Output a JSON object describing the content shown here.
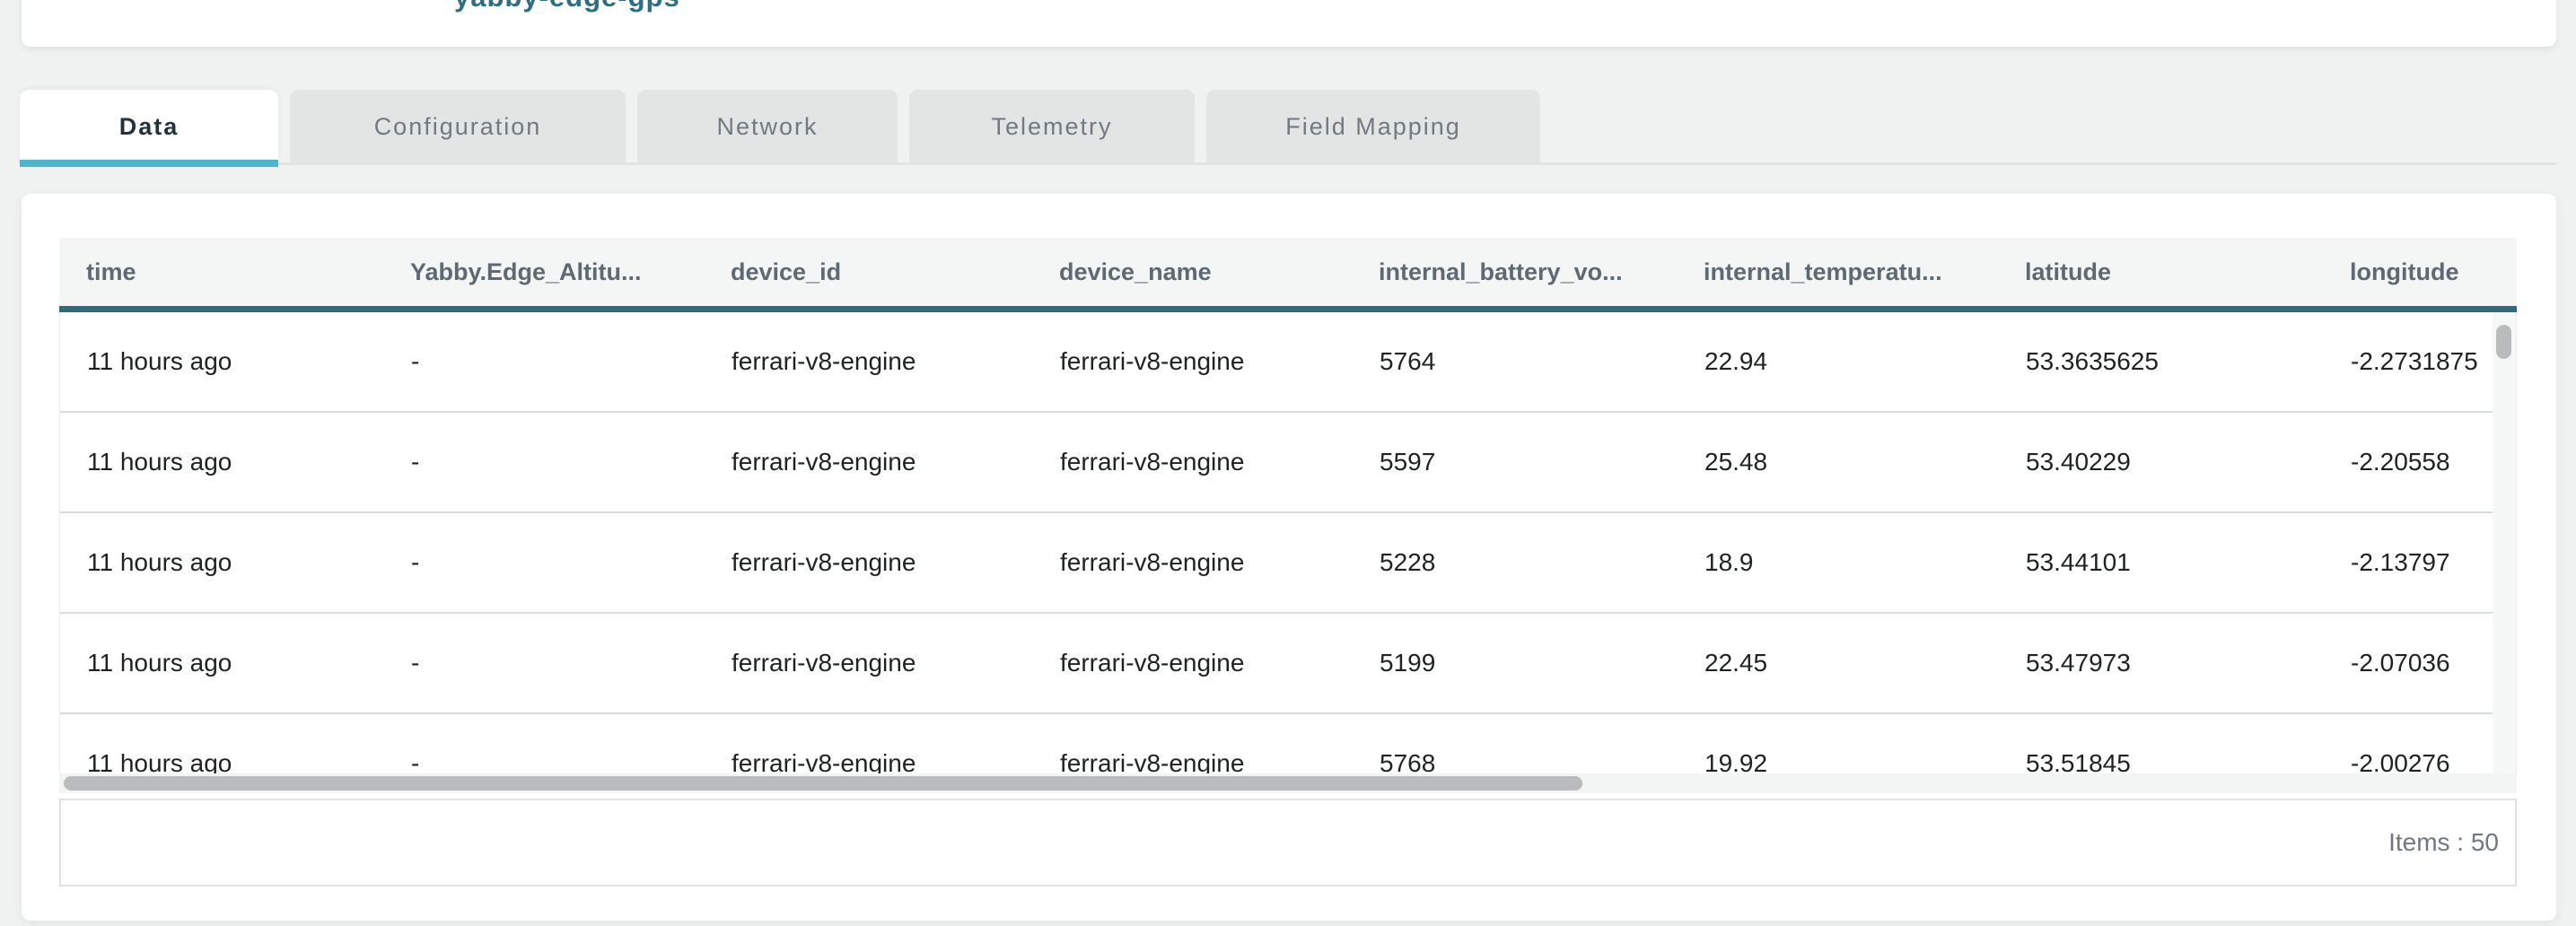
{
  "top_card": {
    "clipped_link_text": "yabby-edge-gps"
  },
  "tabs": [
    {
      "label": "Data",
      "active": true
    },
    {
      "label": "Configuration",
      "active": false
    },
    {
      "label": "Network",
      "active": false
    },
    {
      "label": "Telemetry",
      "active": false
    },
    {
      "label": "Field Mapping",
      "active": false
    }
  ],
  "table": {
    "headers": [
      "time",
      "Yabby.Edge_Altitu...",
      "device_id",
      "device_name",
      "internal_battery_vo...",
      "internal_temperatu...",
      "latitude",
      "longitude"
    ],
    "rows": [
      [
        "11 hours ago",
        "-",
        "ferrari-v8-engine",
        "ferrari-v8-engine",
        "5764",
        "22.94",
        "53.3635625",
        "-2.2731875"
      ],
      [
        "11 hours ago",
        "-",
        "ferrari-v8-engine",
        "ferrari-v8-engine",
        "5597",
        "25.48",
        "53.40229",
        "-2.20558"
      ],
      [
        "11 hours ago",
        "-",
        "ferrari-v8-engine",
        "ferrari-v8-engine",
        "5228",
        "18.9",
        "53.44101",
        "-2.13797"
      ],
      [
        "11 hours ago",
        "-",
        "ferrari-v8-engine",
        "ferrari-v8-engine",
        "5199",
        "22.45",
        "53.47973",
        "-2.07036"
      ],
      [
        "11 hours ago",
        "-",
        "ferrari-v8-engine",
        "ferrari-v8-engine",
        "5768",
        "19.92",
        "53.51845",
        "-2.00276"
      ]
    ]
  },
  "footer": {
    "items_label": "Items : 50"
  },
  "colors": {
    "accent_cyan": "#4cb4cd",
    "header_border_teal": "#2e6b7d",
    "page_background": "#f0f1f1",
    "inactive_tab_background": "#e3e4e4",
    "link_teal": "#2f6e80"
  }
}
